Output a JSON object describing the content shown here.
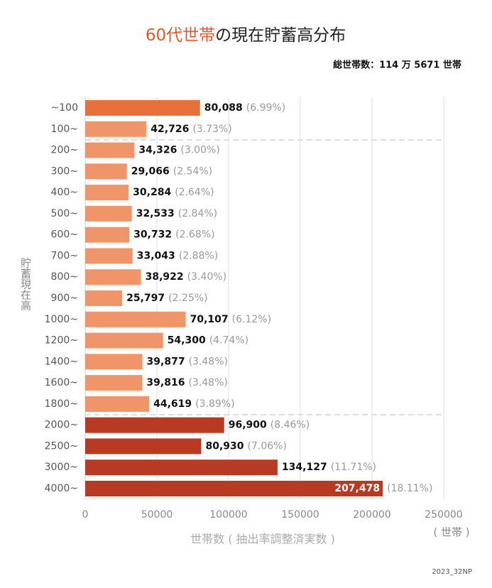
{
  "chart_data": {
    "type": "hbar",
    "title_highlight": "60代世帯",
    "title": "の現在貯蓄高分布",
    "subtitle": "総世帯数：114 万 5671 世帯",
    "y_label": "貯蓄現在高",
    "x_label": "世帯数 ( 抽出率調整済実数 )",
    "x_unit": "( 世帯 )",
    "footnote": "2023_32NP",
    "categories": [
      "~100",
      "100~",
      "200~",
      "300~",
      "400~",
      "500~",
      "600~",
      "700~",
      "800~",
      "900~",
      "1000~",
      "1200~",
      "1400~",
      "1600~",
      "1800~",
      "2000~",
      "2500~",
      "3000~",
      "4000~"
    ],
    "values": [
      80088,
      42726,
      34326,
      29066,
      30284,
      32533,
      30732,
      33043,
      38922,
      25797,
      70107,
      54300,
      39877,
      39816,
      44619,
      96900,
      80930,
      134127,
      207478
    ],
    "value_labels": [
      "80,088",
      "42,726",
      "34,326",
      "29,066",
      "30,284",
      "32,533",
      "30,732",
      "33,043",
      "38,922",
      "25,797",
      "70,107",
      "54,300",
      "39,877",
      "39,816",
      "44,619",
      "96,900",
      "80,930",
      "134,127",
      "207,478"
    ],
    "shares": [
      6.99,
      3.73,
      3.0,
      2.54,
      2.64,
      2.84,
      2.68,
      2.88,
      3.4,
      2.25,
      6.12,
      4.74,
      3.48,
      3.48,
      3.89,
      8.46,
      7.06,
      11.71,
      18.11
    ],
    "share_labels": [
      "(6.99%)",
      "(3.73%)",
      "(3.00%)",
      "(2.54%)",
      "(2.64%)",
      "(2.84%)",
      "(2.68%)",
      "(2.88%)",
      "(3.40%)",
      "(2.25%)",
      "(6.12%)",
      "(4.74%)",
      "(3.48%)",
      "(3.48%)",
      "(3.89%)",
      "(8.46%)",
      "(7.06%)",
      "(11.71%)",
      "(18.11%)"
    ],
    "colors": [
      "#e8703a",
      "#f0956a",
      "#f0956a",
      "#f0956a",
      "#f0956a",
      "#f0956a",
      "#f0956a",
      "#f0956a",
      "#f0956a",
      "#f0956a",
      "#f0956a",
      "#f0956a",
      "#f0956a",
      "#f0956a",
      "#f0956a",
      "#b83a22",
      "#b83a22",
      "#b83a22",
      "#b83a22"
    ],
    "xlim": [
      0,
      250000
    ],
    "xticks": [
      0,
      50000,
      100000,
      150000,
      200000,
      250000
    ],
    "grid": true
  }
}
